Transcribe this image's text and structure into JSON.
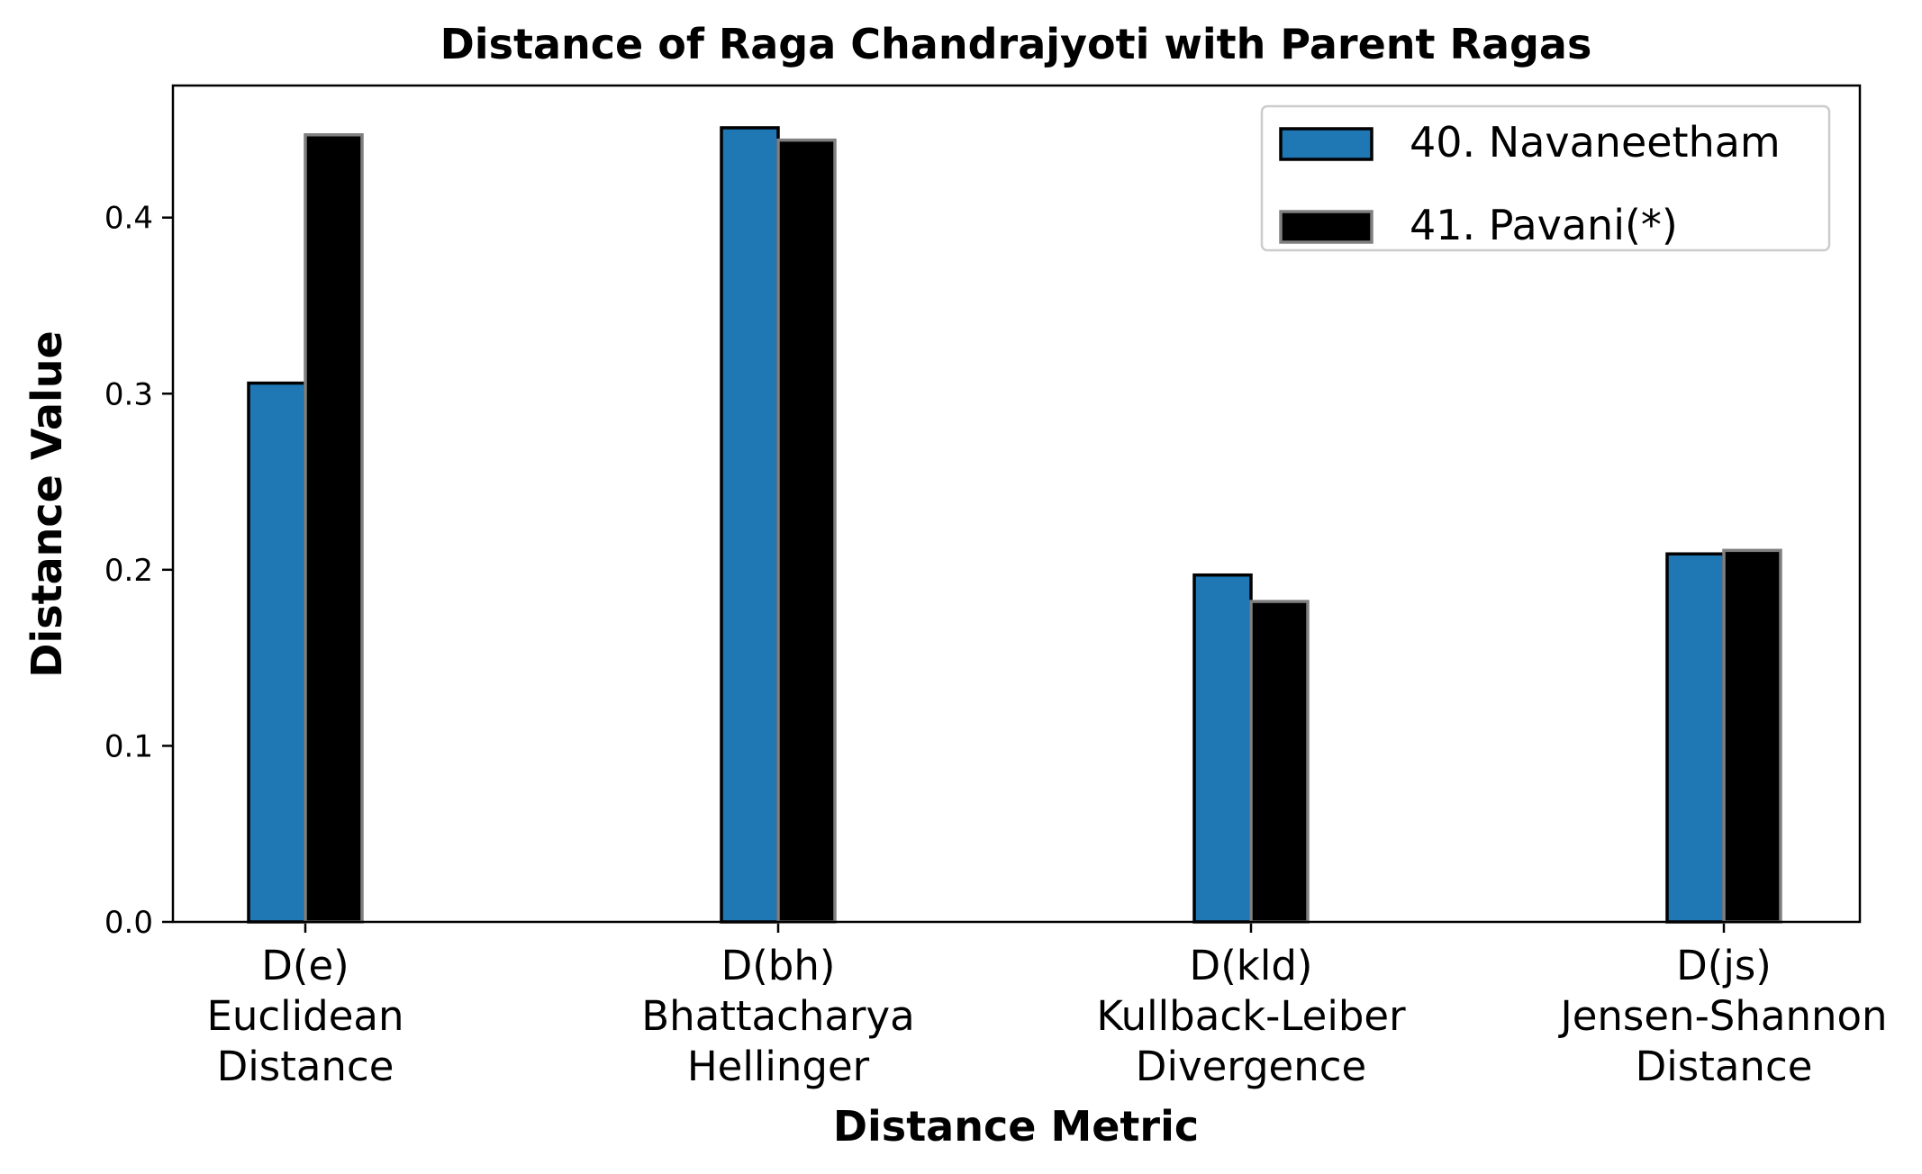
{
  "chart_data": {
    "type": "bar",
    "title": "Distance of Raga Chandrajyoti with Parent Ragas",
    "xlabel": "Distance Metric",
    "ylabel": "Distance Value",
    "categories": [
      [
        "D(e)",
        "Euclidean",
        "Distance"
      ],
      [
        "D(bh)",
        "Bhattacharya",
        "Hellinger"
      ],
      [
        "D(kld)",
        "Kullback-Leiber",
        "Divergence"
      ],
      [
        "D(js)",
        "Jensen-Shannon",
        "Distance"
      ]
    ],
    "series": [
      {
        "name": "40. Navaneetham",
        "color": "#1f77b4",
        "edge": "#000000",
        "values": [
          0.306,
          0.451,
          0.197,
          0.209
        ]
      },
      {
        "name": "41. Pavani(*)",
        "color": "#000000",
        "edge": "#808080",
        "values": [
          0.447,
          0.444,
          0.182,
          0.211
        ]
      }
    ],
    "ylim": [
      0,
      0.475
    ],
    "yticks": [
      "0.0",
      "0.1",
      "0.2",
      "0.3",
      "0.4"
    ],
    "ytick_values": [
      0,
      0.1,
      0.2,
      0.3,
      0.4
    ],
    "grid": false,
    "legend_position": "top-right"
  }
}
